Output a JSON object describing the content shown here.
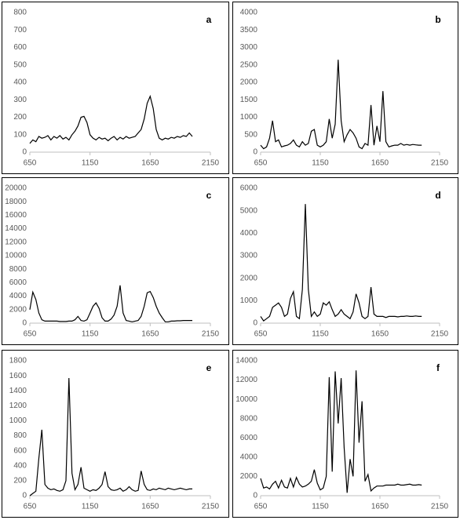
{
  "chart_data": [
    {
      "type": "line",
      "label": "a",
      "xlim": [
        650,
        2150
      ],
      "xticks": [
        650,
        1150,
        1650,
        2150
      ],
      "ylim": [
        0,
        800
      ],
      "yticks": [
        0,
        100,
        200,
        300,
        400,
        500,
        600,
        700,
        800
      ],
      "color": "#000000",
      "x": [
        650,
        675,
        700,
        725,
        750,
        775,
        800,
        825,
        850,
        875,
        900,
        925,
        950,
        975,
        1000,
        1025,
        1050,
        1075,
        1100,
        1125,
        1150,
        1175,
        1200,
        1225,
        1250,
        1275,
        1300,
        1325,
        1350,
        1375,
        1400,
        1425,
        1450,
        1475,
        1500,
        1525,
        1550,
        1575,
        1600,
        1625,
        1650,
        1675,
        1700,
        1725,
        1750,
        1775,
        1800,
        1825,
        1850,
        1875,
        1900,
        1925,
        1950,
        1975,
        2000
      ],
      "values": [
        50,
        70,
        60,
        90,
        80,
        85,
        95,
        70,
        90,
        80,
        95,
        75,
        85,
        70,
        100,
        120,
        150,
        200,
        205,
        170,
        100,
        80,
        70,
        85,
        75,
        80,
        65,
        80,
        90,
        70,
        85,
        75,
        90,
        80,
        85,
        90,
        110,
        130,
        190,
        280,
        320,
        250,
        130,
        80,
        70,
        80,
        75,
        85,
        80,
        90,
        85,
        95,
        90,
        110,
        90
      ]
    },
    {
      "type": "line",
      "label": "b",
      "xlim": [
        650,
        2150
      ],
      "xticks": [
        650,
        1150,
        1650,
        2150
      ],
      "ylim": [
        0,
        4000
      ],
      "yticks": [
        0,
        500,
        1000,
        1500,
        2000,
        2500,
        3000,
        3500,
        4000
      ],
      "color": "#000000",
      "x": [
        650,
        675,
        700,
        725,
        750,
        775,
        800,
        825,
        850,
        875,
        900,
        925,
        950,
        975,
        1000,
        1025,
        1050,
        1075,
        1100,
        1125,
        1150,
        1175,
        1200,
        1225,
        1250,
        1275,
        1300,
        1325,
        1350,
        1375,
        1400,
        1425,
        1450,
        1475,
        1500,
        1525,
        1550,
        1575,
        1600,
        1625,
        1650,
        1675,
        1700,
        1725,
        1750,
        1775,
        1800,
        1825,
        1850,
        1875,
        1900,
        1925,
        1950,
        1975,
        2000
      ],
      "values": [
        200,
        100,
        150,
        400,
        900,
        300,
        350,
        150,
        180,
        200,
        250,
        350,
        200,
        150,
        300,
        200,
        250,
        600,
        650,
        200,
        150,
        200,
        300,
        950,
        400,
        800,
        2650,
        900,
        300,
        500,
        650,
        550,
        400,
        150,
        100,
        250,
        200,
        1350,
        200,
        750,
        300,
        1750,
        300,
        150,
        180,
        200,
        200,
        250,
        200,
        220,
        200,
        220,
        210,
        200,
        200
      ]
    },
    {
      "type": "line",
      "label": "c",
      "xlim": [
        650,
        2150
      ],
      "xticks": [
        650,
        1150,
        1650,
        2150
      ],
      "ylim": [
        0,
        20000
      ],
      "yticks": [
        0,
        2000,
        4000,
        6000,
        8000,
        10000,
        12000,
        14000,
        16000,
        18000,
        20000
      ],
      "color": "#000000",
      "x": [
        650,
        675,
        700,
        725,
        750,
        775,
        800,
        825,
        850,
        875,
        900,
        925,
        950,
        975,
        1000,
        1025,
        1050,
        1075,
        1100,
        1125,
        1150,
        1175,
        1200,
        1225,
        1250,
        1275,
        1300,
        1325,
        1350,
        1375,
        1400,
        1425,
        1450,
        1475,
        1500,
        1525,
        1550,
        1575,
        1600,
        1625,
        1650,
        1675,
        1700,
        1725,
        1750,
        1775,
        1800,
        1825,
        1850,
        1875,
        1900,
        1925,
        1950,
        1975,
        2000
      ],
      "values": [
        2000,
        4600,
        3500,
        1500,
        500,
        300,
        300,
        300,
        300,
        300,
        250,
        250,
        250,
        300,
        300,
        500,
        1000,
        400,
        300,
        500,
        1500,
        2500,
        3000,
        2200,
        800,
        300,
        300,
        600,
        1200,
        2500,
        5600,
        1500,
        400,
        300,
        200,
        300,
        400,
        1000,
        2500,
        4500,
        4700,
        3800,
        2500,
        1500,
        800,
        200,
        200,
        300,
        300,
        350,
        350,
        400,
        400,
        400,
        400
      ]
    },
    {
      "type": "line",
      "label": "d",
      "xlim": [
        650,
        2150
      ],
      "xticks": [
        650,
        1150,
        1650,
        2150
      ],
      "ylim": [
        0,
        6000
      ],
      "yticks": [
        0,
        1000,
        2000,
        3000,
        4000,
        5000,
        6000
      ],
      "color": "#000000",
      "x": [
        650,
        675,
        700,
        725,
        750,
        775,
        800,
        825,
        850,
        875,
        900,
        925,
        950,
        975,
        1000,
        1025,
        1050,
        1075,
        1100,
        1125,
        1150,
        1175,
        1200,
        1225,
        1250,
        1275,
        1300,
        1325,
        1350,
        1375,
        1400,
        1425,
        1450,
        1475,
        1500,
        1525,
        1550,
        1575,
        1600,
        1625,
        1650,
        1675,
        1700,
        1725,
        1750,
        1775,
        1800,
        1825,
        1850,
        1875,
        1900,
        1925,
        1950,
        1975,
        2000
      ],
      "values": [
        300,
        100,
        200,
        300,
        700,
        800,
        900,
        700,
        300,
        400,
        1100,
        1400,
        300,
        200,
        1500,
        5300,
        1500,
        300,
        500,
        300,
        400,
        900,
        800,
        950,
        600,
        300,
        400,
        600,
        400,
        300,
        200,
        500,
        1300,
        900,
        300,
        200,
        300,
        1600,
        400,
        300,
        300,
        300,
        250,
        300,
        300,
        300,
        280,
        300,
        300,
        320,
        300,
        300,
        320,
        300,
        300
      ]
    },
    {
      "type": "line",
      "label": "e",
      "xlim": [
        650,
        2150
      ],
      "xticks": [
        650,
        1150,
        1650,
        2150
      ],
      "ylim": [
        0,
        1800
      ],
      "yticks": [
        0,
        200,
        400,
        600,
        800,
        1000,
        1200,
        1400,
        1600,
        1800
      ],
      "color": "#000000",
      "x": [
        650,
        675,
        700,
        725,
        750,
        775,
        800,
        825,
        850,
        875,
        900,
        925,
        950,
        975,
        1000,
        1025,
        1050,
        1075,
        1100,
        1125,
        1150,
        1175,
        1200,
        1225,
        1250,
        1275,
        1300,
        1325,
        1350,
        1375,
        1400,
        1425,
        1450,
        1475,
        1500,
        1525,
        1550,
        1575,
        1600,
        1625,
        1650,
        1675,
        1700,
        1725,
        1750,
        1775,
        1800,
        1825,
        1850,
        1875,
        1900,
        1925,
        1950,
        1975,
        2000
      ],
      "values": [
        0,
        30,
        60,
        500,
        880,
        150,
        100,
        80,
        90,
        70,
        60,
        80,
        200,
        1570,
        300,
        80,
        150,
        380,
        100,
        80,
        60,
        80,
        70,
        100,
        150,
        320,
        120,
        80,
        70,
        80,
        100,
        60,
        80,
        120,
        80,
        60,
        70,
        330,
        150,
        80,
        70,
        90,
        80,
        100,
        90,
        80,
        100,
        90,
        80,
        90,
        100,
        90,
        80,
        90,
        90
      ]
    },
    {
      "type": "line",
      "label": "f",
      "xlim": [
        650,
        2150
      ],
      "xticks": [
        650,
        1150,
        1650,
        2150
      ],
      "ylim": [
        0,
        14000
      ],
      "yticks": [
        0,
        2000,
        4000,
        6000,
        8000,
        10000,
        12000,
        14000
      ],
      "color": "#000000",
      "x": [
        650,
        675,
        700,
        725,
        750,
        775,
        800,
        825,
        850,
        875,
        900,
        925,
        950,
        975,
        1000,
        1025,
        1050,
        1075,
        1100,
        1125,
        1150,
        1175,
        1200,
        1225,
        1250,
        1275,
        1300,
        1325,
        1350,
        1375,
        1400,
        1425,
        1450,
        1475,
        1500,
        1525,
        1550,
        1575,
        1600,
        1625,
        1650,
        1675,
        1700,
        1725,
        1750,
        1775,
        1800,
        1825,
        1850,
        1875,
        1900,
        1925,
        1950,
        1975,
        2000
      ],
      "values": [
        1800,
        800,
        900,
        700,
        1200,
        1500,
        800,
        1600,
        900,
        800,
        1800,
        900,
        1900,
        1200,
        900,
        1000,
        1200,
        1500,
        2700,
        1300,
        600,
        800,
        2000,
        12300,
        2500,
        12900,
        7500,
        12200,
        5000,
        300,
        3800,
        2000,
        13000,
        5500,
        9800,
        1500,
        2200,
        500,
        800,
        1000,
        1000,
        1000,
        1100,
        1100,
        1100,
        1100,
        1200,
        1100,
        1100,
        1150,
        1200,
        1100,
        1100,
        1150,
        1100
      ]
    }
  ]
}
